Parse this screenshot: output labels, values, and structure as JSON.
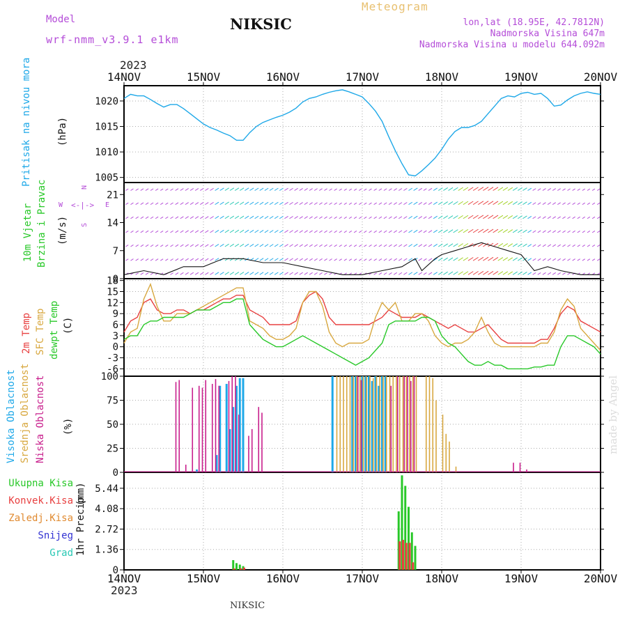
{
  "header": {
    "model_label": "Model",
    "model_name": "wrf-nmm_v3.9.1 e1km",
    "station": "NIKSIC",
    "product": "Meteogram",
    "lonlat": "lon,lat (18.95E, 42.7812N)",
    "elevation": "Nadmorska Visina 647m",
    "model_elevation": "Nadmorska Visina u modelu 644.092m",
    "year_top": "2023",
    "year_bottom": "2023",
    "footer_station": "NIKSIC",
    "credit": "made by Angel"
  },
  "colors": {
    "purple": "#b44cd8",
    "cyan": "#1ea8e8",
    "green": "#28c828",
    "red": "#e84040",
    "orange": "#e08a30",
    "tan": "#d8a840",
    "magenta": "#c81e8c",
    "blue": "#3232d2",
    "teal": "#28c8b4"
  },
  "date_ticks": [
    "14NOV",
    "15NOV",
    "16NOV",
    "17NOV",
    "18NOV",
    "19NOV",
    "20NOV"
  ],
  "panels": {
    "pressure": {
      "ylabel_line1": "Pritisak na nivou mora",
      "unit": "(hPa)",
      "yticks": [
        "1005",
        "1010",
        "1015",
        "1020"
      ]
    },
    "wind": {
      "ylabel_line1": "10m Vjetar",
      "ylabel_line2": "Brzina i Pravac",
      "unit": "(m/s)",
      "yticks": [
        "0",
        "7",
        "14",
        "21"
      ],
      "compass_n": "N",
      "compass_s": "S",
      "compass_w": "W",
      "compass_e": "E",
      "compass_glyph": "<-|->"
    },
    "temperature": {
      "ylabel_line1": "2m Temp",
      "ylabel_line2": "SFC Temp",
      "ylabel_line3": "dewpt Temp",
      "unit": "(C)",
      "yticks": [
        "-6",
        "-3",
        "0",
        "3",
        "6",
        "9",
        "12",
        "15",
        "18"
      ]
    },
    "cloud": {
      "ylabel_line1": "Visoka Oblacnost",
      "ylabel_line2": "Srednja Oblacnost",
      "ylabel_line3": "Niska Oblacnost",
      "unit": "(%)",
      "yticks": [
        "0",
        "25",
        "50",
        "75",
        "100"
      ]
    },
    "precip": {
      "ylabel": "1hr Precip",
      "unit": "(mm)",
      "yticks": [
        "0",
        "1.36",
        "2.72",
        "4.08",
        "5.44"
      ],
      "legend": [
        "Ukupna Kisa",
        "Konvek.Kisa",
        "Zaledj.Kisa",
        "Snijeg",
        "Grad"
      ]
    }
  },
  "chart_data": [
    {
      "type": "line",
      "xlabel": "",
      "ylabel": "Pritisak na nivou mora (hPa)",
      "ylim": [
        1004,
        1023
      ],
      "xlim": [
        0,
        144
      ],
      "series": [
        {
          "name": "Pritisak na nivou mora",
          "x": [
            0,
            2,
            4,
            6,
            8,
            10,
            12,
            14,
            16,
            18,
            20,
            22,
            24,
            26,
            28,
            30,
            32,
            34,
            36,
            38,
            40,
            42,
            44,
            46,
            48,
            50,
            52,
            54,
            56,
            58,
            60,
            62,
            64,
            66,
            68,
            70,
            72,
            74,
            76,
            78,
            80,
            82,
            84,
            86,
            88,
            90,
            92,
            94,
            96,
            98,
            100,
            102,
            104,
            106,
            108,
            110,
            112,
            114,
            116,
            118,
            120,
            122,
            124,
            126,
            128,
            130,
            132,
            134,
            136,
            138,
            140,
            142,
            144
          ],
          "values": [
            1020.5,
            1021.3,
            1021.0,
            1021.0,
            1020.3,
            1019.5,
            1018.8,
            1019.3,
            1019.3,
            1018.5,
            1017.5,
            1016.5,
            1015.5,
            1014.8,
            1014.3,
            1013.7,
            1013.2,
            1012.3,
            1012.3,
            1013.8,
            1015.0,
            1015.8,
            1016.3,
            1016.8,
            1017.2,
            1017.8,
            1018.6,
            1019.8,
            1020.5,
            1020.8,
            1021.3,
            1021.7,
            1022.0,
            1022.2,
            1021.8,
            1021.3,
            1020.8,
            1019.5,
            1018.0,
            1016.0,
            1013.0,
            1010.2,
            1007.7,
            1005.5,
            1005.3,
            1006.3,
            1007.5,
            1008.8,
            1010.5,
            1012.5,
            1014.0,
            1014.8,
            1014.8,
            1015.2,
            1016.0,
            1017.5,
            1019.0,
            1020.5,
            1021.0,
            1020.8,
            1021.5,
            1021.7,
            1021.3,
            1021.5,
            1020.5,
            1019.0,
            1019.2,
            1020.2,
            1021.0,
            1021.5,
            1021.8,
            1021.5,
            1021.3
          ]
        }
      ]
    },
    {
      "type": "line",
      "xlabel": "",
      "ylabel": "10m Vjetar Brzina i Pravac (m/s)",
      "ylim": [
        0,
        24
      ],
      "xlim": [
        0,
        144
      ],
      "series": [
        {
          "name": "10m Vjetar",
          "x": [
            0,
            6,
            12,
            18,
            24,
            30,
            36,
            42,
            48,
            54,
            60,
            66,
            72,
            78,
            84,
            88,
            90,
            94,
            96,
            100,
            104,
            108,
            112,
            116,
            120,
            124,
            128,
            132,
            138,
            144
          ],
          "values": [
            1,
            2,
            1,
            3,
            3,
            5,
            5,
            4,
            4,
            3,
            2,
            1,
            1,
            2,
            3,
            5,
            2,
            5,
            6,
            7,
            8,
            9,
            8,
            7,
            6,
            2,
            3,
            2,
            1,
            1
          ]
        }
      ]
    },
    {
      "type": "line",
      "xlabel": "",
      "ylabel": "Temp (C)",
      "ylim": [
        -8,
        18.5
      ],
      "xlim": [
        0,
        144
      ],
      "series": [
        {
          "name": "2m Temp",
          "x": [
            0,
            2,
            4,
            6,
            8,
            10,
            12,
            14,
            16,
            18,
            20,
            22,
            24,
            26,
            28,
            30,
            32,
            34,
            36,
            38,
            40,
            42,
            44,
            46,
            48,
            50,
            52,
            54,
            56,
            58,
            60,
            62,
            64,
            66,
            68,
            70,
            72,
            74,
            76,
            78,
            80,
            82,
            84,
            86,
            88,
            90,
            92,
            94,
            96,
            98,
            100,
            102,
            104,
            106,
            108,
            110,
            112,
            114,
            116,
            118,
            120,
            122,
            124,
            126,
            128,
            130,
            132,
            134,
            136,
            138,
            140,
            142,
            144
          ],
          "values": [
            4,
            7,
            8,
            12,
            13,
            10,
            9,
            9,
            10,
            10,
            9,
            10,
            10,
            11,
            12,
            13,
            13,
            14,
            14,
            10,
            9,
            8,
            6,
            6,
            6,
            6,
            7,
            12,
            14,
            15,
            13,
            8,
            6,
            6,
            6,
            6,
            6,
            6,
            7,
            8,
            10,
            9,
            8,
            8,
            8,
            9,
            8,
            7,
            6,
            5,
            6,
            5,
            4,
            4,
            5,
            6,
            4,
            2,
            1,
            1,
            1,
            1,
            1,
            2,
            2,
            5,
            9,
            11,
            10,
            7,
            6,
            5,
            4
          ]
        },
        {
          "name": "SFC Temp",
          "x": [
            0,
            2,
            4,
            6,
            8,
            10,
            12,
            14,
            16,
            18,
            20,
            22,
            24,
            26,
            28,
            30,
            32,
            34,
            36,
            38,
            40,
            42,
            44,
            46,
            48,
            50,
            52,
            54,
            56,
            58,
            60,
            62,
            64,
            66,
            68,
            70,
            72,
            74,
            76,
            78,
            80,
            82,
            84,
            86,
            88,
            90,
            92,
            94,
            96,
            98,
            100,
            102,
            104,
            106,
            108,
            110,
            112,
            114,
            116,
            118,
            120,
            122,
            124,
            126,
            128,
            130,
            132,
            134,
            136,
            138,
            140,
            142,
            144
          ],
          "values": [
            1,
            4,
            5,
            13,
            17,
            11,
            7,
            7,
            9,
            9,
            9,
            10,
            11,
            12,
            13,
            14,
            15,
            16,
            16,
            7,
            6,
            5,
            3,
            2,
            2,
            3,
            5,
            12,
            15,
            15,
            11,
            4,
            1,
            0,
            1,
            1,
            1,
            2,
            8,
            12,
            10,
            12,
            7,
            7,
            9,
            9,
            7,
            3,
            1,
            0,
            1,
            1,
            2,
            4,
            8,
            4,
            1,
            0,
            0,
            0,
            0,
            0,
            0,
            1,
            1,
            4,
            10,
            13,
            11,
            5,
            3,
            1,
            -1
          ]
        },
        {
          "name": "dewpt Temp",
          "x": [
            0,
            2,
            4,
            6,
            8,
            10,
            12,
            14,
            16,
            18,
            20,
            22,
            24,
            26,
            28,
            30,
            32,
            34,
            36,
            38,
            40,
            42,
            44,
            46,
            48,
            50,
            52,
            54,
            56,
            58,
            60,
            62,
            64,
            66,
            68,
            70,
            72,
            74,
            76,
            78,
            80,
            82,
            84,
            86,
            88,
            90,
            92,
            94,
            96,
            98,
            100,
            102,
            104,
            106,
            108,
            110,
            112,
            114,
            116,
            118,
            120,
            122,
            124,
            126,
            128,
            130,
            132,
            134,
            136,
            138,
            140,
            142,
            144
          ],
          "values": [
            2,
            3,
            3,
            6,
            7,
            7,
            8,
            8,
            8,
            8,
            9,
            10,
            10,
            10,
            11,
            12,
            12,
            13,
            13,
            6,
            4,
            2,
            1,
            0,
            0,
            1,
            2,
            3,
            2,
            1,
            0,
            -1,
            -2,
            -3,
            -4,
            -5,
            -4,
            -3,
            -1,
            1,
            6,
            7,
            7,
            7,
            7,
            8,
            8,
            7,
            3,
            1,
            0,
            -2,
            -4,
            -5,
            -5,
            -4,
            -5,
            -5,
            -6,
            -6,
            -6,
            -6,
            -5.5,
            -5.5,
            -5,
            -5,
            0,
            3,
            3,
            2,
            1,
            0,
            -2
          ]
        }
      ]
    },
    {
      "type": "bar",
      "xlabel": "",
      "ylabel": "Oblacnost (%)",
      "ylim": [
        0,
        100
      ],
      "xlim": [
        0,
        144
      ],
      "series": [
        {
          "name": "Visoka Oblacnost",
          "x": [
            22,
            28,
            29,
            31,
            32,
            33,
            34,
            35,
            36,
            63,
            69,
            70,
            72,
            73,
            74,
            75,
            76,
            77,
            78,
            79
          ],
          "values": [
            3,
            18,
            90,
            92,
            45,
            68,
            90,
            98,
            98,
            100,
            100,
            100,
            100,
            100,
            100,
            95,
            100,
            90,
            100,
            100
          ]
        },
        {
          "name": "Srednja Oblacnost",
          "x": [
            64,
            65,
            66,
            67,
            68,
            69,
            70,
            71,
            72,
            73,
            74,
            75,
            76,
            77,
            78,
            79,
            80,
            81,
            82,
            83,
            84,
            85,
            86,
            87,
            88,
            91,
            92,
            93,
            94,
            96,
            97,
            98,
            100
          ],
          "values": [
            100,
            100,
            100,
            100,
            100,
            100,
            100,
            100,
            100,
            100,
            100,
            98,
            100,
            100,
            100,
            100,
            100,
            100,
            100,
            100,
            100,
            100,
            100,
            100,
            100,
            100,
            100,
            98,
            75,
            60,
            40,
            32,
            6
          ]
        },
        {
          "name": "Niska Oblacnost",
          "x": [
            16,
            17,
            19,
            21,
            23,
            24,
            25,
            27,
            28,
            29,
            32,
            33,
            34,
            35,
            38,
            39,
            41,
            42,
            71,
            72,
            81,
            83,
            85,
            86,
            87,
            88,
            118,
            120,
            122
          ],
          "values": [
            94,
            96,
            8,
            88,
            90,
            88,
            96,
            92,
            97,
            90,
            95,
            100,
            100,
            60,
            38,
            45,
            68,
            62,
            100,
            96,
            90,
            100,
            100,
            100,
            95,
            100,
            10,
            10,
            3
          ]
        }
      ]
    },
    {
      "type": "bar",
      "xlabel": "",
      "ylabel": "1hr Precip (mm)",
      "ylim": [
        0,
        6.5
      ],
      "xlim": [
        0,
        144
      ],
      "series": [
        {
          "name": "Ukupna Kisa",
          "x": [
            33,
            34,
            35,
            36,
            83,
            84,
            85,
            86,
            87,
            88
          ],
          "values": [
            0.65,
            0.45,
            0.35,
            0.25,
            3.9,
            6.3,
            5.6,
            4.2,
            2.5,
            1.6
          ]
        },
        {
          "name": "Konvek.Kisa",
          "x": [
            33,
            35,
            36,
            83,
            84,
            85,
            86,
            87
          ],
          "values": [
            0.1,
            0.1,
            0.15,
            1.9,
            2.0,
            1.8,
            1.8,
            0.5
          ]
        },
        {
          "name": "Zaledj.Kisa",
          "x": [],
          "values": []
        },
        {
          "name": "Snijeg",
          "x": [],
          "values": []
        },
        {
          "name": "Grad",
          "x": [],
          "values": []
        }
      ]
    }
  ]
}
